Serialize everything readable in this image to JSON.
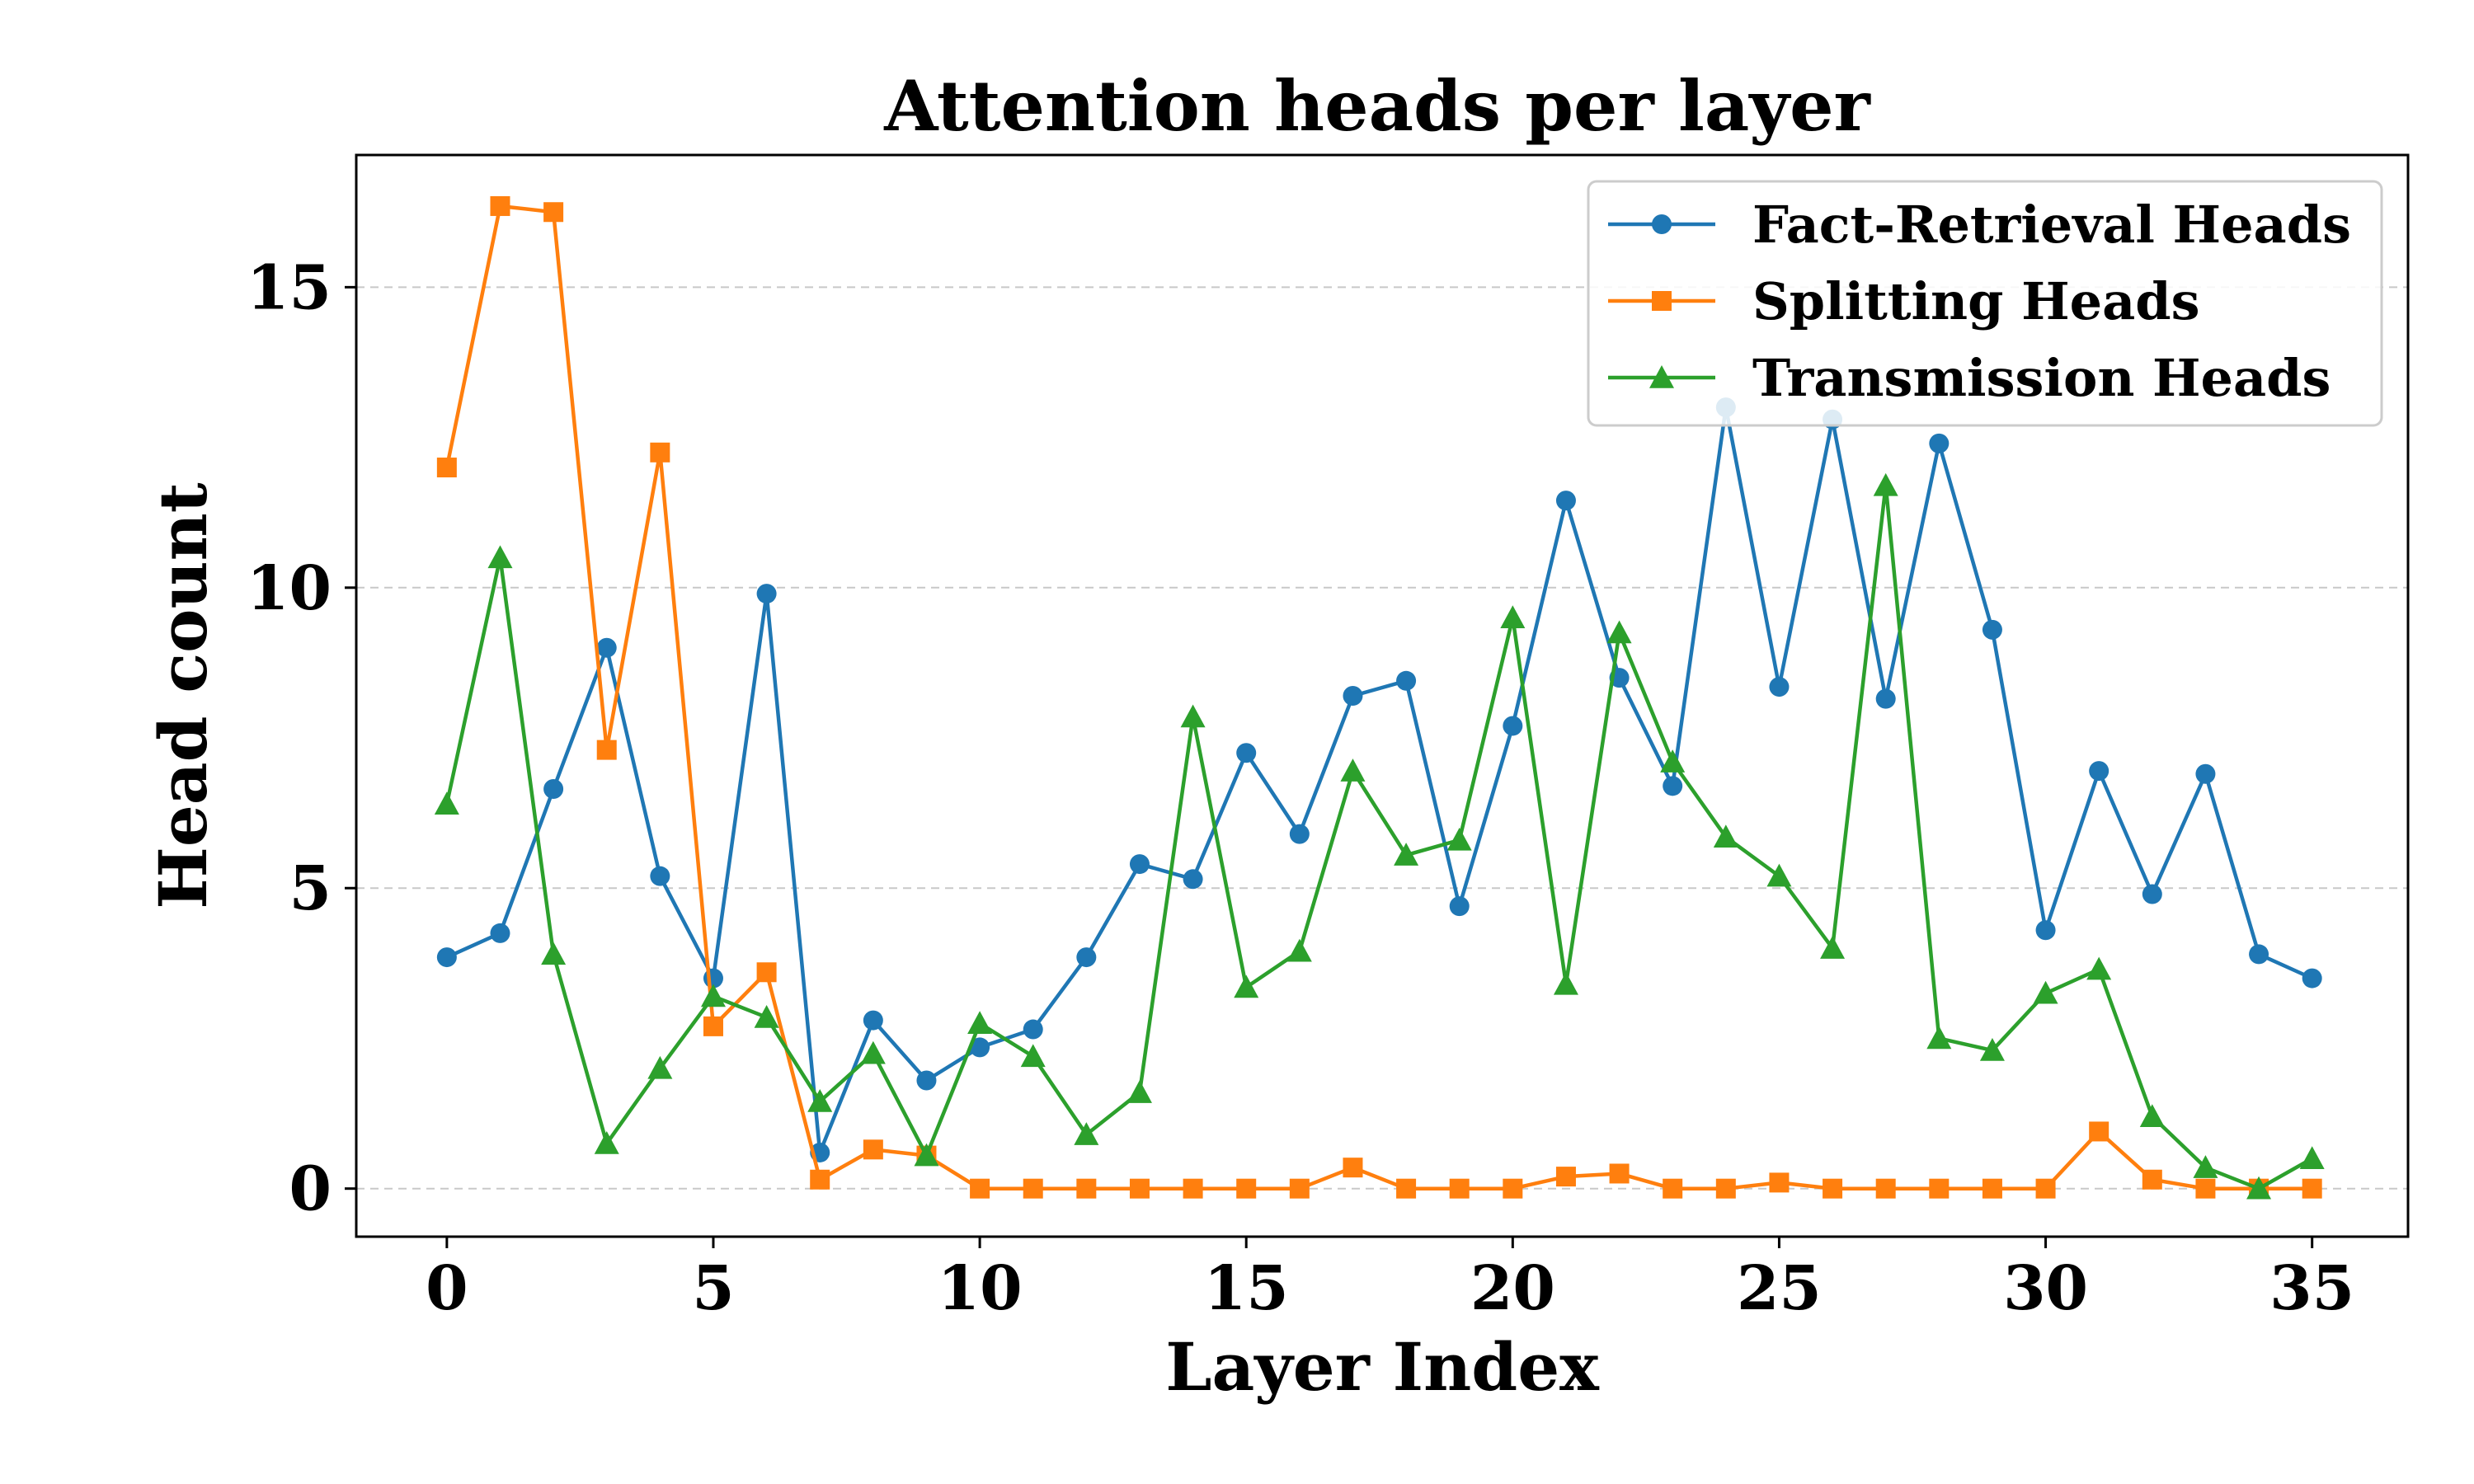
{
  "chart_data": {
    "type": "line",
    "title": "Attention heads per layer",
    "xlabel": "Layer Index",
    "ylabel": "Head count",
    "xlim": [
      -1.7,
      36.8
    ],
    "ylim": [
      -0.8,
      17.2
    ],
    "xticks": [
      0,
      5,
      10,
      15,
      20,
      25,
      30,
      35
    ],
    "yticks": [
      0,
      5,
      10,
      15
    ],
    "grid": "y-dashed",
    "legend_position": "top-right",
    "x": [
      0,
      1,
      2,
      3,
      4,
      5,
      6,
      7,
      8,
      9,
      10,
      11,
      12,
      13,
      14,
      15,
      16,
      17,
      18,
      19,
      20,
      21,
      22,
      23,
      24,
      25,
      26,
      27,
      28,
      29,
      30,
      31,
      32,
      33,
      34,
      35
    ],
    "series": [
      {
        "name": "Fact-Retrieval Heads",
        "color": "#1f77b4",
        "marker": "circle",
        "values": [
          3.85,
          4.25,
          6.65,
          9.0,
          5.2,
          3.5,
          9.9,
          0.6,
          2.8,
          1.8,
          2.35,
          2.65,
          3.85,
          5.4,
          5.15,
          7.25,
          5.9,
          8.2,
          8.45,
          4.7,
          7.7,
          11.45,
          8.5,
          6.7,
          13.0,
          8.35,
          12.8,
          8.15,
          12.4,
          9.3,
          4.3,
          6.95,
          4.9,
          6.9,
          3.9,
          3.5
        ]
      },
      {
        "name": "Splitting Heads",
        "color": "#ff7f0e",
        "marker": "square",
        "values": [
          12.0,
          16.35,
          16.25,
          7.3,
          12.25,
          2.7,
          3.6,
          0.15,
          0.65,
          0.55,
          0.0,
          0.0,
          0.0,
          0.0,
          0.0,
          0.0,
          0.0,
          0.35,
          0.0,
          0.0,
          0.0,
          0.2,
          0.25,
          0.0,
          0.0,
          0.1,
          0.0,
          0.0,
          0.0,
          0.0,
          0.0,
          0.95,
          0.15,
          0.0,
          0.0,
          0.0
        ]
      },
      {
        "name": "Transmission Heads",
        "color": "#2ca02c",
        "marker": "triangle",
        "values": [
          6.4,
          10.5,
          3.9,
          0.75,
          2.0,
          3.2,
          2.85,
          1.45,
          2.25,
          0.55,
          2.75,
          2.2,
          0.9,
          1.6,
          7.85,
          3.35,
          3.95,
          6.95,
          5.55,
          5.8,
          9.5,
          3.4,
          9.25,
          7.1,
          5.85,
          5.2,
          4.0,
          11.7,
          2.5,
          2.3,
          3.25,
          3.65,
          1.2,
          0.35,
          0.0,
          0.5
        ]
      }
    ]
  }
}
